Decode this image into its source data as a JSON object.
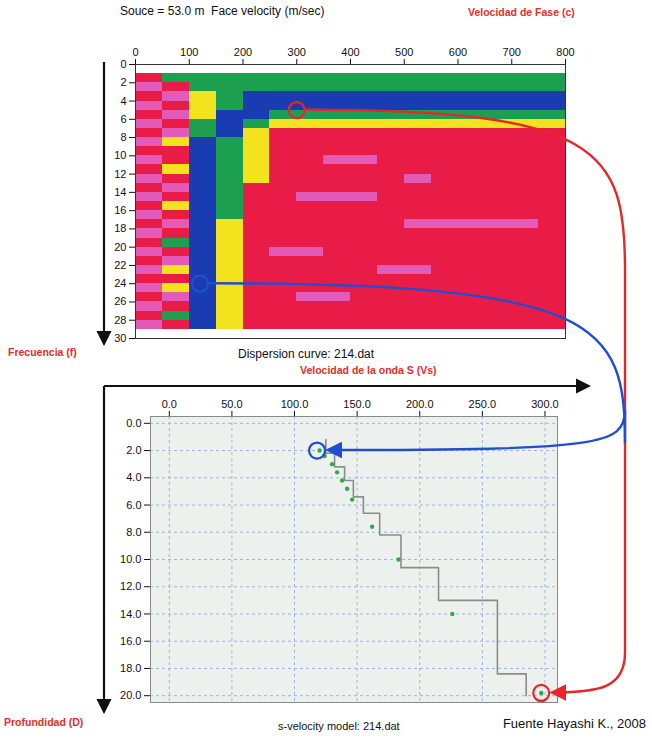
{
  "chart_data": [
    {
      "type": "heatmap",
      "title": "Souce = 53.0 m  Face velocity (m/sec)",
      "x_label": "Velocidad de Fase (c)",
      "y_label": "Frecuencia (f)",
      "caption": "Dispersion curve: 214.dat",
      "xlim": [
        0,
        800
      ],
      "xticks": [
        0,
        100,
        200,
        300,
        400,
        500,
        600,
        700,
        800
      ],
      "ylim": [
        0,
        30
      ],
      "yticks": [
        0,
        2,
        4,
        6,
        8,
        10,
        12,
        14,
        16,
        18,
        20,
        22,
        24,
        26,
        28,
        30
      ],
      "grid": false,
      "x_edges": [
        0,
        50,
        100,
        150,
        200,
        250,
        300,
        350,
        400,
        450,
        500,
        550,
        600,
        650,
        700,
        750,
        800
      ],
      "y_edges": [
        1,
        2,
        3,
        4,
        5,
        6,
        7,
        8,
        9,
        10,
        11,
        12,
        13,
        14,
        15,
        16,
        17,
        18,
        19,
        20,
        21,
        22,
        23,
        24,
        25,
        26,
        27,
        28,
        29
      ],
      "z": [
        [
          1,
          3,
          3,
          3,
          3,
          3,
          3,
          3,
          3,
          3,
          3,
          3,
          3,
          3,
          3,
          3
        ],
        [
          0,
          1,
          3,
          3,
          3,
          3,
          3,
          3,
          3,
          3,
          3,
          3,
          3,
          3,
          3,
          3
        ],
        [
          1,
          0,
          2,
          3,
          4,
          4,
          4,
          4,
          4,
          4,
          4,
          4,
          4,
          4,
          4,
          4
        ],
        [
          0,
          1,
          2,
          3,
          4,
          4,
          4,
          4,
          4,
          4,
          4,
          4,
          4,
          4,
          4,
          4
        ],
        [
          1,
          0,
          2,
          4,
          4,
          3,
          3,
          3,
          3,
          3,
          3,
          3,
          3,
          3,
          3,
          3
        ],
        [
          0,
          1,
          3,
          4,
          3,
          2,
          2,
          2,
          2,
          2,
          2,
          2,
          2,
          2,
          2,
          2
        ],
        [
          1,
          0,
          3,
          4,
          2,
          1,
          1,
          1,
          1,
          1,
          1,
          1,
          1,
          1,
          1,
          1
        ],
        [
          0,
          2,
          4,
          3,
          2,
          1,
          1,
          1,
          1,
          1,
          1,
          1,
          1,
          1,
          1,
          1
        ],
        [
          1,
          1,
          4,
          3,
          2,
          1,
          1,
          1,
          1,
          1,
          1,
          1,
          1,
          1,
          1,
          1
        ],
        [
          0,
          1,
          4,
          3,
          2,
          1,
          1,
          0,
          0,
          1,
          1,
          1,
          1,
          1,
          1,
          1
        ],
        [
          1,
          2,
          4,
          3,
          2,
          1,
          1,
          1,
          1,
          1,
          1,
          1,
          1,
          1,
          1,
          1
        ],
        [
          0,
          1,
          4,
          3,
          2,
          1,
          1,
          1,
          1,
          1,
          0,
          1,
          1,
          1,
          1,
          1
        ],
        [
          1,
          0,
          4,
          3,
          1,
          1,
          1,
          1,
          1,
          1,
          1,
          1,
          1,
          1,
          1,
          1
        ],
        [
          0,
          1,
          4,
          3,
          1,
          1,
          0,
          0,
          0,
          1,
          1,
          1,
          1,
          1,
          1,
          1
        ],
        [
          1,
          2,
          4,
          3,
          1,
          1,
          1,
          1,
          1,
          1,
          1,
          1,
          1,
          1,
          1,
          1
        ],
        [
          0,
          1,
          4,
          3,
          1,
          1,
          1,
          1,
          1,
          1,
          1,
          1,
          1,
          1,
          1,
          1
        ],
        [
          1,
          0,
          4,
          2,
          1,
          1,
          1,
          1,
          1,
          1,
          0,
          0,
          0,
          0,
          0,
          1
        ],
        [
          0,
          1,
          4,
          2,
          1,
          1,
          1,
          1,
          1,
          1,
          1,
          1,
          1,
          1,
          1,
          1
        ],
        [
          1,
          3,
          4,
          2,
          1,
          1,
          1,
          1,
          1,
          1,
          1,
          1,
          1,
          1,
          1,
          1
        ],
        [
          0,
          1,
          4,
          2,
          1,
          0,
          0,
          1,
          1,
          1,
          1,
          1,
          1,
          1,
          1,
          1
        ],
        [
          1,
          0,
          4,
          2,
          1,
          1,
          1,
          1,
          1,
          1,
          1,
          1,
          1,
          1,
          1,
          1
        ],
        [
          0,
          2,
          4,
          2,
          1,
          1,
          1,
          1,
          1,
          0,
          0,
          1,
          1,
          1,
          1,
          1
        ],
        [
          1,
          1,
          4,
          2,
          1,
          1,
          1,
          1,
          1,
          1,
          1,
          1,
          1,
          1,
          1,
          1
        ],
        [
          0,
          2,
          4,
          2,
          1,
          1,
          1,
          1,
          1,
          1,
          1,
          1,
          1,
          1,
          1,
          1
        ],
        [
          1,
          0,
          4,
          2,
          1,
          1,
          0,
          0,
          1,
          1,
          1,
          1,
          1,
          1,
          1,
          1
        ],
        [
          0,
          1,
          4,
          2,
          1,
          1,
          1,
          1,
          1,
          1,
          1,
          1,
          1,
          1,
          1,
          1
        ],
        [
          1,
          3,
          4,
          2,
          1,
          1,
          1,
          1,
          1,
          1,
          1,
          1,
          1,
          1,
          1,
          1
        ],
        [
          0,
          1,
          4,
          2,
          1,
          1,
          1,
          1,
          1,
          1,
          1,
          1,
          1,
          1,
          1,
          1
        ]
      ],
      "zlim": [
        0,
        4
      ],
      "colors": [
        "#e25bb8",
        "#e81c46",
        "#f3e21e",
        "#1c9f4e",
        "#1a3cb2"
      ],
      "highlights": {
        "x": [
          300,
          120
        ],
        "y": [
          5,
          24
        ],
        "colors": [
          "#e8262a",
          "#1f4fd0"
        ]
      }
    },
    {
      "type": "line",
      "x_label": "Velocidad de la onda S (Vs)",
      "y_label": "Profundidad (D)",
      "caption": "s-velocity model: 214.dat",
      "source": "Fuente Hayashi K., 2008",
      "xlim": [
        -15,
        310
      ],
      "xticks": [
        {
          "value": 0,
          "label": "0.0"
        },
        {
          "value": 50,
          "label": "50.0"
        },
        {
          "value": 100,
          "label": "100.0"
        },
        {
          "value": 150,
          "label": "150.0"
        },
        {
          "value": 200,
          "label": "200.0"
        },
        {
          "value": 250,
          "label": "250.0"
        },
        {
          "value": 300,
          "label": "300.0"
        }
      ],
      "ylim": [
        -0.5,
        20.5
      ],
      "yticks": [
        {
          "value": 0,
          "label": "0.0"
        },
        {
          "value": 2,
          "label": "2.0"
        },
        {
          "value": 4,
          "label": "4.0"
        },
        {
          "value": 6,
          "label": "6.0"
        },
        {
          "value": 8,
          "label": "8.0"
        },
        {
          "value": 10,
          "label": "10.0"
        },
        {
          "value": 12,
          "label": "12.0"
        },
        {
          "value": 14,
          "label": "14.0"
        },
        {
          "value": 16,
          "label": "16.0"
        },
        {
          "value": 18,
          "label": "18.0"
        },
        {
          "value": 20,
          "label": "20.0"
        }
      ],
      "grid": true,
      "series": [
        {
          "type": "step",
          "color": "#8c8c8c",
          "x": [
            125,
            132,
            140,
            147,
            155,
            168,
            185,
            215,
            262,
            285
          ],
          "y_edges": [
            1.2,
            2.2,
            3.2,
            4.2,
            5.4,
            6.6,
            8.2,
            10.6,
            13.0,
            18.4,
            20.0
          ]
        },
        {
          "type": "scatter",
          "marker": "dot",
          "color": "#2faa4a",
          "x": [
            120,
            124,
            130,
            134,
            138,
            142,
            146,
            162,
            183,
            226,
            297
          ],
          "y": [
            2.0,
            2.4,
            3.0,
            3.6,
            4.2,
            4.8,
            5.6,
            7.6,
            10.0,
            14.0,
            19.8
          ]
        }
      ],
      "highlights": {
        "x": [
          297,
          118
        ],
        "y": [
          19.8,
          2.0
        ],
        "colors": [
          "#e8262a",
          "#1f4fd0"
        ]
      }
    }
  ]
}
